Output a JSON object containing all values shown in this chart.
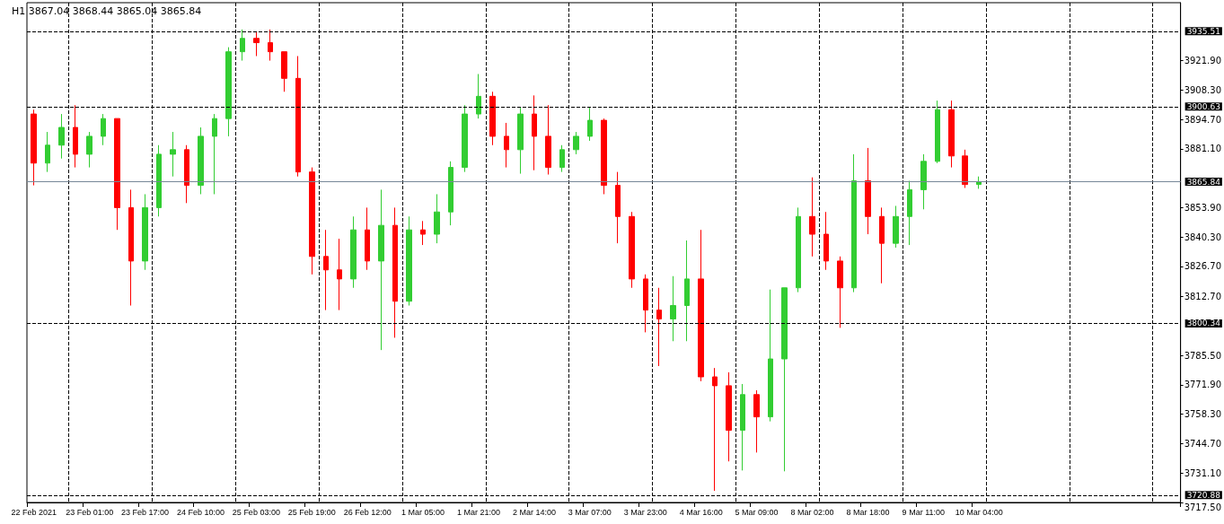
{
  "chart_data": {
    "type": "candlestick",
    "title": "H1 3867.04 3868.44 3865.04 3865.84",
    "categories": [
      "22 Feb 2021",
      null,
      null,
      null,
      "23 Feb 01:00",
      null,
      null,
      null,
      "23 Feb 17:00",
      null,
      null,
      null,
      "24 Feb 10:00",
      null,
      null,
      null,
      "25 Feb 03:00",
      null,
      null,
      null,
      "25 Feb 19:00",
      null,
      null,
      null,
      "26 Feb 12:00",
      null,
      null,
      null,
      "1 Mar 05:00",
      null,
      null,
      null,
      "1 Mar 21:00",
      null,
      null,
      null,
      "2 Mar 14:00",
      null,
      null,
      null,
      "3 Mar 07:00",
      null,
      null,
      null,
      "3 Mar 23:00",
      null,
      null,
      null,
      "4 Mar 16:00",
      null,
      null,
      null,
      "5 Mar 09:00",
      null,
      null,
      null,
      "8 Mar 02:00",
      null,
      null,
      null,
      "8 Mar 18:00",
      null,
      null,
      null,
      "9 Mar 11:00",
      null,
      null,
      null,
      "10 Mar 04:00",
      null,
      null,
      null,
      null,
      null,
      null,
      null,
      null,
      null,
      null,
      null,
      null,
      null,
      null
    ],
    "ohlc": [
      [
        3897.2,
        3899.2,
        3864.2,
        3874.5
      ],
      [
        3874.5,
        3888.9,
        3870.4,
        3882.8
      ],
      [
        3882.8,
        3897.2,
        3876.6,
        3891.0
      ],
      [
        3891.0,
        3901.3,
        3872.5,
        3878.6
      ],
      [
        3878.6,
        3888.9,
        3872.5,
        3886.9
      ],
      [
        3886.9,
        3897.2,
        3882.8,
        3895.1
      ],
      [
        3895.1,
        3895.1,
        3843.6,
        3853.9
      ],
      [
        3853.9,
        3862.2,
        3808.6,
        3829.2
      ],
      [
        3829.2,
        3860.1,
        3825.1,
        3853.9
      ],
      [
        3853.9,
        3882.8,
        3849.8,
        3878.6
      ],
      [
        3878.6,
        3888.9,
        3868.3,
        3880.7
      ],
      [
        3880.7,
        3882.8,
        3856.0,
        3864.2
      ],
      [
        3864.2,
        3891.0,
        3860.1,
        3886.9
      ],
      [
        3886.9,
        3897.2,
        3860.1,
        3895.1
      ],
      [
        3895.1,
        3928.1,
        3886.9,
        3926.0
      ],
      [
        3926.0,
        3936.3,
        3921.9,
        3932.2
      ],
      [
        3932.2,
        3935.5,
        3924.0,
        3930.2
      ],
      [
        3930.2,
        3936.3,
        3921.9,
        3926.0
      ],
      [
        3926.0,
        3926.0,
        3907.5,
        3913.7
      ],
      [
        3913.7,
        3924.0,
        3868.3,
        3870.4
      ],
      [
        3870.4,
        3872.5,
        3823.0,
        3831.3
      ],
      [
        3831.3,
        3843.6,
        3806.5,
        3825.1
      ],
      [
        3825.1,
        3839.5,
        3806.5,
        3820.9
      ],
      [
        3820.9,
        3849.8,
        3816.8,
        3843.6
      ],
      [
        3843.6,
        3853.9,
        3825.1,
        3829.2
      ],
      [
        3829.2,
        3862.2,
        3788.0,
        3845.7
      ],
      [
        3845.7,
        3853.9,
        3793.7,
        3810.6
      ],
      [
        3810.6,
        3849.8,
        3808.6,
        3843.6
      ],
      [
        3843.6,
        3847.7,
        3836.6,
        3841.6
      ],
      [
        3841.6,
        3860.1,
        3837.4,
        3851.9
      ],
      [
        3851.9,
        3875.3,
        3845.7,
        3872.5
      ],
      [
        3872.5,
        3901.3,
        3870.4,
        3897.2
      ],
      [
        3897.2,
        3915.7,
        3895.1,
        3905.4
      ],
      [
        3905.4,
        3907.5,
        3882.8,
        3886.9
      ],
      [
        3886.9,
        3893.1,
        3872.5,
        3880.7
      ],
      [
        3880.7,
        3900.1,
        3869.6,
        3897.2
      ],
      [
        3897.2,
        3905.8,
        3871.2,
        3886.9
      ],
      [
        3886.9,
        3901.3,
        3869.2,
        3872.5
      ],
      [
        3872.5,
        3882.8,
        3870.4,
        3880.7
      ],
      [
        3880.7,
        3888.9,
        3878.6,
        3886.9
      ],
      [
        3886.9,
        3900.1,
        3884.8,
        3894.3
      ],
      [
        3894.3,
        3895.1,
        3860.1,
        3864.2
      ],
      [
        3864.2,
        3870.4,
        3837.4,
        3849.8
      ],
      [
        3849.8,
        3851.9,
        3816.8,
        3820.9
      ],
      [
        3820.9,
        3823.0,
        3796.2,
        3806.5
      ],
      [
        3806.5,
        3816.8,
        3780.6,
        3802.4
      ],
      [
        3802.4,
        3822.2,
        3792.1,
        3808.6
      ],
      [
        3808.6,
        3838.7,
        3792.1,
        3820.9
      ],
      [
        3820.9,
        3843.6,
        3773.6,
        3775.6
      ],
      [
        3775.6,
        3779.7,
        3722.9,
        3771.5
      ],
      [
        3771.5,
        3777.7,
        3736.5,
        3750.9
      ],
      [
        3750.9,
        3772.3,
        3732.3,
        3767.4
      ],
      [
        3767.4,
        3769.4,
        3740.6,
        3757.1
      ],
      [
        3757.1,
        3816.0,
        3755.0,
        3783.9
      ],
      [
        3783.9,
        3816.8,
        3731.9,
        3816.8
      ],
      [
        3816.8,
        3853.9,
        3814.8,
        3849.8
      ],
      [
        3849.8,
        3867.9,
        3831.3,
        3841.6
      ],
      [
        3841.6,
        3851.9,
        3825.1,
        3829.2
      ],
      [
        3829.2,
        3831.3,
        3798.3,
        3816.8
      ],
      [
        3816.8,
        3878.6,
        3814.8,
        3866.3
      ],
      [
        3866.3,
        3881.5,
        3841.6,
        3849.8
      ],
      [
        3849.8,
        3853.9,
        3818.9,
        3837.4
      ],
      [
        3837.4,
        3854.7,
        3835.4,
        3849.8
      ],
      [
        3849.8,
        3866.3,
        3836.6,
        3862.2
      ],
      [
        3862.2,
        3878.6,
        3853.1,
        3875.3
      ],
      [
        3875.3,
        3903.4,
        3874.5,
        3899.2
      ],
      [
        3899.2,
        3903.4,
        3872.5,
        3877.8
      ],
      [
        3877.8,
        3880.7,
        3863.0,
        3864.6
      ],
      [
        3864.6,
        3868.3,
        3862.6,
        3865.84
      ],
      null,
      null,
      null,
      null,
      null,
      null,
      null,
      null,
      null,
      null,
      null,
      null,
      null,
      null
    ],
    "ylim": [
      3717.5,
      3948.7
    ],
    "yticks": [
      {
        "value": 3717.5,
        "label": "3717.50"
      },
      {
        "value": 3731.1,
        "label": "3731.10"
      },
      {
        "value": 3744.7,
        "label": "3744.70"
      },
      {
        "value": 3758.3,
        "label": "3758.30"
      },
      {
        "value": 3771.9,
        "label": "3771.90"
      },
      {
        "value": 3785.5,
        "label": "3785.50"
      },
      {
        "value": 3812.7,
        "label": "3812.70"
      },
      {
        "value": 3826.7,
        "label": "3826.70"
      },
      {
        "value": 3840.3,
        "label": "3840.30"
      },
      {
        "value": 3853.9,
        "label": "3853.90"
      },
      {
        "value": 3881.1,
        "label": "3881.10"
      },
      {
        "value": 3894.7,
        "label": "3894.70"
      },
      {
        "value": 3908.3,
        "label": "3908.30"
      },
      {
        "value": 3921.9,
        "label": "3921.90"
      }
    ],
    "ref_lines": [
      {
        "axis": "y",
        "value": 3935.51,
        "label": "3935.51",
        "color": "#000000",
        "line_style": "dashed"
      },
      {
        "axis": "y",
        "value": 3900.63,
        "label": "3900.63",
        "color": "#000000",
        "line_style": "dashed"
      },
      {
        "axis": "y",
        "value": 3865.84,
        "label": "3865.84",
        "color": "#778899",
        "line_style": "solid"
      },
      {
        "axis": "y",
        "value": 3800.34,
        "label": "3800.34",
        "color": "#000000",
        "line_style": "dashed"
      },
      {
        "axis": "y",
        "value": 3720.88,
        "label": "3720.88",
        "color": "#000000",
        "line_style": "dashed"
      }
    ],
    "grid": "x"
  }
}
